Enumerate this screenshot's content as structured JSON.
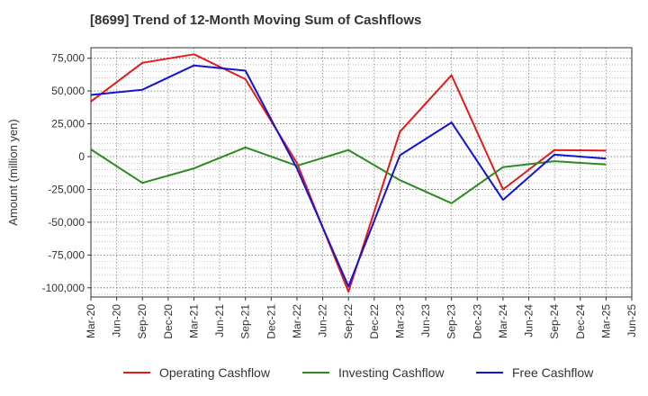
{
  "chart_data": {
    "type": "line",
    "title": "[8699]  Trend of 12-Month Moving Sum of Cashflows",
    "xlabel": "",
    "ylabel": "Amount (million yen)",
    "x_ticks": [
      "Mar-20",
      "Jun-20",
      "Sep-20",
      "Dec-20",
      "Mar-21",
      "Jun-21",
      "Sep-21",
      "Dec-21",
      "Mar-22",
      "Jun-22",
      "Sep-22",
      "Dec-22",
      "Mar-23",
      "Jun-23",
      "Sep-23",
      "Dec-23",
      "Mar-24",
      "Jun-24",
      "Sep-24",
      "Dec-24",
      "Mar-25",
      "Jun-25"
    ],
    "y_ticks": [
      75000,
      50000,
      25000,
      0,
      -25000,
      -50000,
      -75000,
      -100000
    ],
    "y_tick_labels": [
      "75,000",
      "50,000",
      "25,000",
      "0",
      "-25,000",
      "-50,000",
      "-75,000",
      "-100,000"
    ],
    "ylim": [
      -107000,
      83000
    ],
    "grid": true,
    "legend_position": "bottom",
    "x": [
      "Mar-20",
      "Sep-20",
      "Mar-21",
      "Sep-21",
      "Mar-22",
      "Sep-22",
      "Mar-23",
      "Sep-23",
      "Mar-24",
      "Sep-24",
      "Mar-25"
    ],
    "series": [
      {
        "name": "Operating Cashflow",
        "color": "#e41a1c",
        "values": [
          42000,
          71500,
          78000,
          59000,
          -5000,
          -103000,
          19000,
          62000,
          -25000,
          5000,
          4500
        ]
      },
      {
        "name": "Investing Cashflow",
        "color": "#2e8b22",
        "values": [
          5500,
          -20000,
          -9000,
          7000,
          -7000,
          5000,
          -18000,
          -35500,
          -8000,
          -3500,
          -6000
        ]
      },
      {
        "name": "Free Cashflow",
        "color": "#1414d2",
        "values": [
          47000,
          51000,
          69500,
          65500,
          -9000,
          -99000,
          1000,
          26000,
          -33000,
          1500,
          -1500
        ]
      }
    ]
  }
}
